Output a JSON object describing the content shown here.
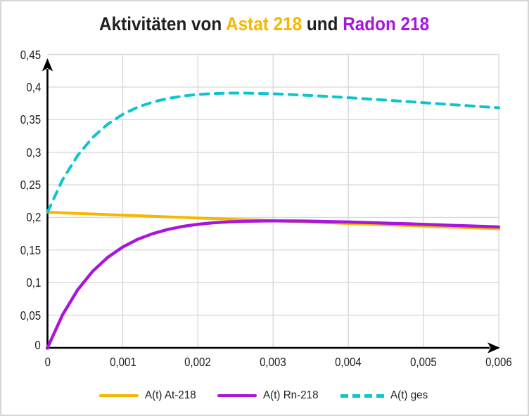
{
  "window": {
    "background": "#ffffff",
    "border_color": "#d5d5d5"
  },
  "title": {
    "text_full": "Aktivitäten von Astat 218 und Radon 218",
    "part_plain_1": "Aktivitäten von ",
    "part_astat": "Astat 218",
    "part_plain_2": " und ",
    "part_radon": "Radon 218",
    "color_plain": "#1f1f1f"
  },
  "chart_data": {
    "type": "line",
    "title": "Aktivitäten von Astat 218 und Radon 218",
    "xlabel": "",
    "ylabel": "",
    "xlim": [
      0,
      0.006
    ],
    "ylim": [
      0,
      0.45
    ],
    "grid": true,
    "grid_color": "#d9d9d9",
    "axis_color": "#000000",
    "tick_label_color": "#1f1f1f",
    "legend_position": "bottom",
    "x": [
      0,
      0.0002,
      0.0004,
      0.0006,
      0.0008,
      0.001,
      0.0012,
      0.0014,
      0.0016,
      0.0018,
      0.002,
      0.0022,
      0.0024,
      0.0026,
      0.0028,
      0.003,
      0.0032,
      0.0034,
      0.0036,
      0.0038,
      0.004,
      0.0042,
      0.0044,
      0.0046,
      0.0048,
      0.005,
      0.0052,
      0.0054,
      0.0056,
      0.0058,
      0.006
    ],
    "series": [
      {
        "name": "A(t) At-218",
        "color": "#f6b700",
        "style": "solid",
        "values": [
          0.208,
          0.2071,
          0.2062,
          0.2053,
          0.2044,
          0.2035,
          0.2027,
          0.2018,
          0.2009,
          0.2,
          0.1992,
          0.1983,
          0.1975,
          0.1966,
          0.1957,
          0.1949,
          0.1941,
          0.1932,
          0.1924,
          0.1916,
          0.1907,
          0.1899,
          0.1891,
          0.1883,
          0.1875,
          0.1866,
          0.1858,
          0.185,
          0.1842,
          0.1834,
          0.1827
        ]
      },
      {
        "name": "A(t) Rn-218",
        "color": "#a716dc",
        "style": "solid",
        "values": [
          0,
          0.0507,
          0.0888,
          0.1173,
          0.1387,
          0.1546,
          0.1665,
          0.1752,
          0.1816,
          0.1862,
          0.1895,
          0.1917,
          0.1932,
          0.1941,
          0.1946,
          0.1948,
          0.1947,
          0.1944,
          0.194,
          0.1935,
          0.193,
          0.1923,
          0.1916,
          0.1909,
          0.1902,
          0.1894,
          0.1886,
          0.1878,
          0.1871,
          0.1863,
          0.1855
        ]
      },
      {
        "name": "A(t) ges",
        "color": "#0bc5cf",
        "style": "dashed",
        "values": [
          0.208,
          0.2578,
          0.295,
          0.3226,
          0.3431,
          0.3581,
          0.3692,
          0.377,
          0.3825,
          0.3862,
          0.3887,
          0.39,
          0.3907,
          0.3907,
          0.3903,
          0.3897,
          0.3888,
          0.3876,
          0.3864,
          0.3851,
          0.3837,
          0.3822,
          0.3807,
          0.3792,
          0.3777,
          0.376,
          0.3744,
          0.3728,
          0.3713,
          0.3697,
          0.3682
        ]
      }
    ],
    "x_ticks": [
      {
        "value": 0,
        "label": "0"
      },
      {
        "value": 0.001,
        "label": "0,001"
      },
      {
        "value": 0.002,
        "label": "0,002"
      },
      {
        "value": 0.003,
        "label": "0,003"
      },
      {
        "value": 0.004,
        "label": "0,004"
      },
      {
        "value": 0.005,
        "label": "0,005"
      },
      {
        "value": 0.006,
        "label": "0,006"
      }
    ],
    "y_ticks": [
      {
        "value": 0,
        "label": "0"
      },
      {
        "value": 0.05,
        "label": "0,05"
      },
      {
        "value": 0.1,
        "label": "0,1"
      },
      {
        "value": 0.15,
        "label": "0,15"
      },
      {
        "value": 0.2,
        "label": "0,2"
      },
      {
        "value": 0.25,
        "label": "0,25"
      },
      {
        "value": 0.3,
        "label": "0,3"
      },
      {
        "value": 0.35,
        "label": "0,35"
      },
      {
        "value": 0.4,
        "label": "0,4"
      },
      {
        "value": 0.45,
        "label": "0,45"
      }
    ]
  }
}
